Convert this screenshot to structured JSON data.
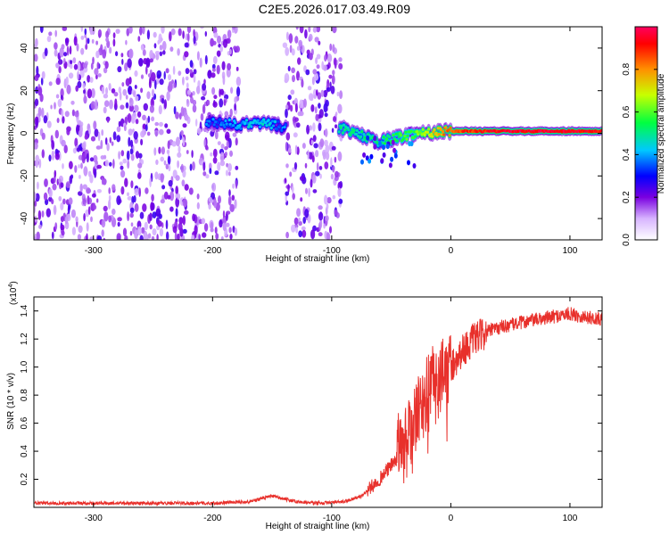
{
  "title": "C2E5.2026.017.03.49.R09",
  "chart_data": [
    {
      "type": "heatmap",
      "name": "spectrogram",
      "xlabel": "Height of straight line (km)",
      "ylabel": "Frequency (Hz)",
      "xlim": [
        -350,
        127
      ],
      "ylim": [
        -50,
        50
      ],
      "xticks": [
        -300,
        -200,
        -100,
        0,
        100
      ],
      "xtick_labels": [
        "-300",
        "-200",
        "-100",
        "0",
        "100"
      ],
      "yticks": [
        -40,
        -20,
        0,
        20,
        40
      ],
      "ytick_labels": [
        "-40",
        "-20",
        "0",
        "20",
        "40"
      ],
      "colorbar": {
        "label": "Normalized spectral amplitude",
        "range": [
          0,
          1
        ],
        "ticks": [
          0.0,
          0.2,
          0.4,
          0.6,
          0.8
        ],
        "tick_labels": [
          "0.0",
          "0.2",
          "0.4",
          "0.6",
          "0.8"
        ]
      },
      "noise_regions_km": [
        [
          -350,
          -178
        ],
        [
          -140,
          -92
        ]
      ],
      "ridge": {
        "description_points": [
          {
            "x": -205,
            "f": 5,
            "amp": 0.35
          },
          {
            "x": -175,
            "f": 4,
            "amp": 0.4
          },
          {
            "x": -155,
            "f": 5,
            "amp": 0.45
          },
          {
            "x": -140,
            "f": 3,
            "amp": 0.35
          },
          {
            "x": -90,
            "f": 2,
            "amp": 0.5
          },
          {
            "x": -60,
            "f": -4,
            "amp": 0.5
          },
          {
            "x": -30,
            "f": 0,
            "amp": 0.6
          },
          {
            "x": 0,
            "f": 1,
            "amp": 0.85
          },
          {
            "x": 50,
            "f": 1,
            "amp": 0.95
          },
          {
            "x": 100,
            "f": 1,
            "amp": 0.95
          },
          {
            "x": 127,
            "f": 1,
            "amp": 0.9
          }
        ]
      }
    },
    {
      "type": "line",
      "name": "snr",
      "xlabel": "Height of straight line (km)",
      "ylabel": "SNR (10 * v/v)",
      "y_multiplier_label": "(x10",
      "y_multiplier_exp": "4",
      "y_multiplier_close": ")",
      "xlim": [
        -350,
        127
      ],
      "ylim": [
        0,
        1.5
      ],
      "xticks": [
        -300,
        -200,
        -100,
        0,
        100
      ],
      "xtick_labels": [
        "-300",
        "-200",
        "-100",
        "0",
        "100"
      ],
      "yticks": [
        0.2,
        0.4,
        0.6,
        0.8,
        1.0,
        1.2,
        1.4
      ],
      "ytick_labels": [
        "0.2",
        "0.4",
        "0.6",
        "0.8",
        "1.0",
        "1.2",
        "1.4"
      ],
      "line_color": "#e8302b",
      "x": [
        -350,
        -300,
        -250,
        -200,
        -170,
        -150,
        -130,
        -110,
        -90,
        -75,
        -60,
        -50,
        -40,
        -30,
        -20,
        -10,
        0,
        10,
        20,
        30,
        40,
        50,
        60,
        80,
        100,
        110,
        127
      ],
      "y": [
        0.03,
        0.03,
        0.03,
        0.03,
        0.04,
        0.08,
        0.04,
        0.03,
        0.04,
        0.08,
        0.2,
        0.3,
        0.4,
        0.6,
        0.8,
        0.9,
        1.0,
        1.12,
        1.2,
        1.25,
        1.28,
        1.3,
        1.32,
        1.35,
        1.38,
        1.36,
        1.34
      ]
    }
  ]
}
